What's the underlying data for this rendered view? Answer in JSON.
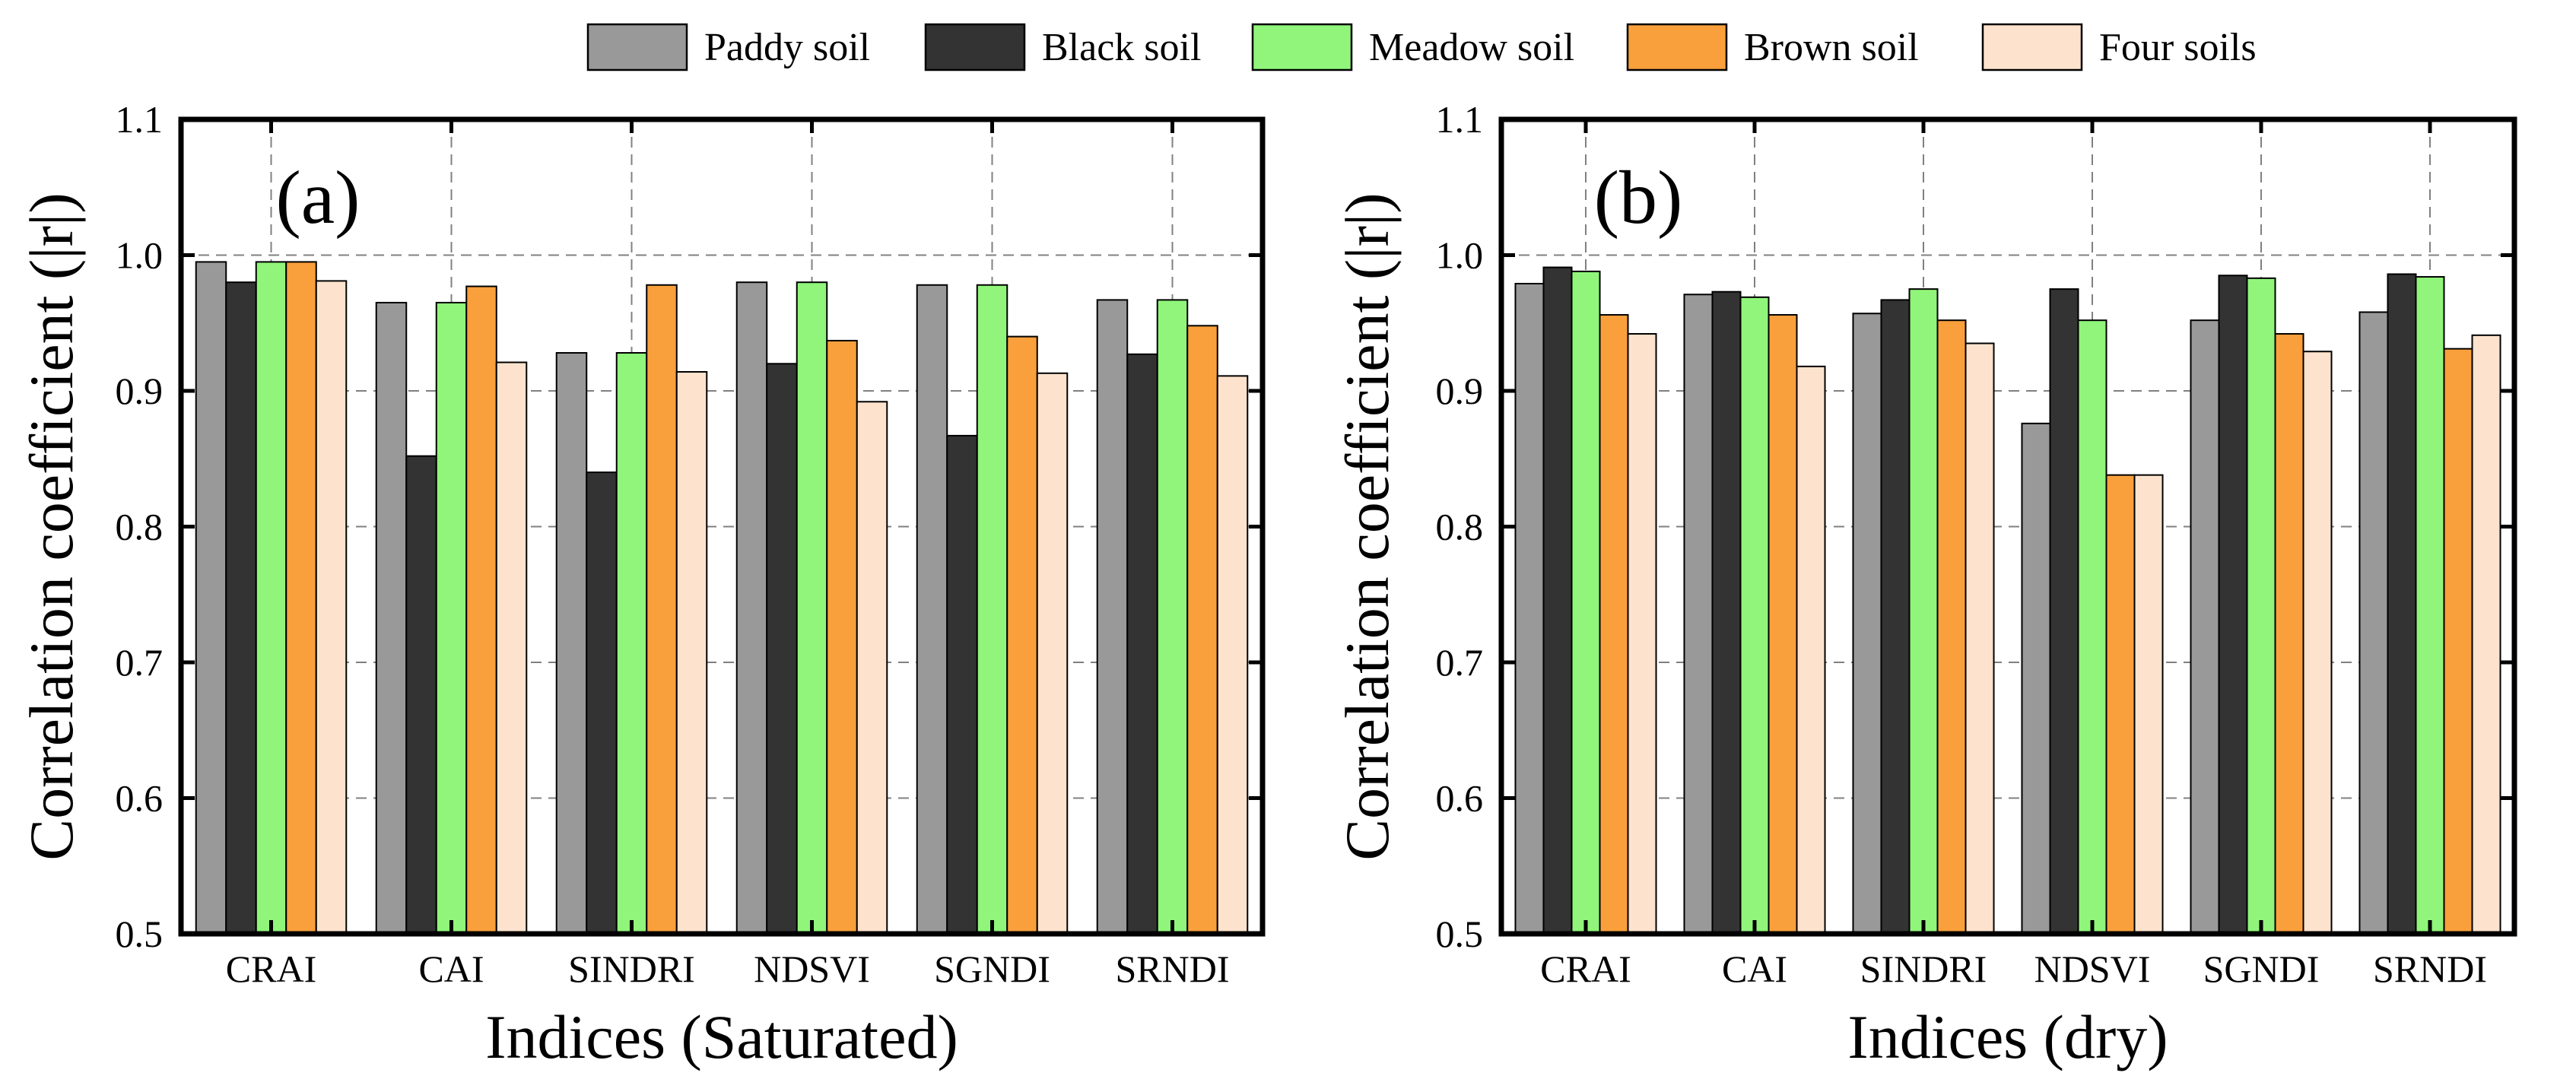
{
  "legend": [
    {
      "name": "Paddy soil",
      "color": "#999999"
    },
    {
      "name": "Black soil",
      "color": "#333333"
    },
    {
      "name": "Meadow soil",
      "color": "#90f57a"
    },
    {
      "name": "Brown soil",
      "color": "#f9a03c"
    },
    {
      "name": "Four soils",
      "color": "#fde3cd"
    }
  ],
  "chart_data": [
    {
      "type": "bar",
      "panel_label": "(a)",
      "title": "",
      "xlabel": "Indices (Saturated)",
      "ylabel": "Correlation coefficient (|r|)",
      "ylim": [
        0.5,
        1.1
      ],
      "yticks": [
        "0.5",
        "0.6",
        "0.7",
        "0.8",
        "0.9",
        "1.0",
        "1.1"
      ],
      "grid": true,
      "categories": [
        "CRAI",
        "CAI",
        "SINDRI",
        "NDSVI",
        "SGNDI",
        "SRNDI"
      ],
      "series": [
        {
          "name": "Paddy soil",
          "values": [
            0.995,
            0.965,
            0.928,
            0.98,
            0.978,
            0.967
          ]
        },
        {
          "name": "Black soil",
          "values": [
            0.98,
            0.852,
            0.84,
            0.92,
            0.867,
            0.927
          ]
        },
        {
          "name": "Meadow soil",
          "values": [
            0.995,
            0.965,
            0.928,
            0.98,
            0.978,
            0.967
          ]
        },
        {
          "name": "Brown soil",
          "values": [
            0.995,
            0.977,
            0.978,
            0.937,
            0.94,
            0.948
          ]
        },
        {
          "name": "Four soils",
          "values": [
            0.981,
            0.921,
            0.914,
            0.892,
            0.913,
            0.911
          ]
        }
      ]
    },
    {
      "type": "bar",
      "panel_label": "(b)",
      "title": "",
      "xlabel": "Indices (dry)",
      "ylabel": "Correlation coefficient (|r|)",
      "ylim": [
        0.5,
        1.1
      ],
      "yticks": [
        "0.5",
        "0.6",
        "0.7",
        "0.8",
        "0.9",
        "1.0",
        "1.1"
      ],
      "grid": true,
      "categories": [
        "CRAI",
        "CAI",
        "SINDRI",
        "NDSVI",
        "SGNDI",
        "SRNDI"
      ],
      "series": [
        {
          "name": "Paddy soil",
          "values": [
            0.979,
            0.971,
            0.957,
            0.876,
            0.952,
            0.958
          ]
        },
        {
          "name": "Black soil",
          "values": [
            0.991,
            0.973,
            0.967,
            0.975,
            0.985,
            0.986
          ]
        },
        {
          "name": "Meadow soil",
          "values": [
            0.988,
            0.969,
            0.975,
            0.952,
            0.983,
            0.984
          ]
        },
        {
          "name": "Brown soil",
          "values": [
            0.956,
            0.956,
            0.952,
            0.838,
            0.942,
            0.931
          ]
        },
        {
          "name": "Four soils",
          "values": [
            0.942,
            0.918,
            0.935,
            0.838,
            0.929,
            0.941
          ]
        }
      ]
    }
  ]
}
